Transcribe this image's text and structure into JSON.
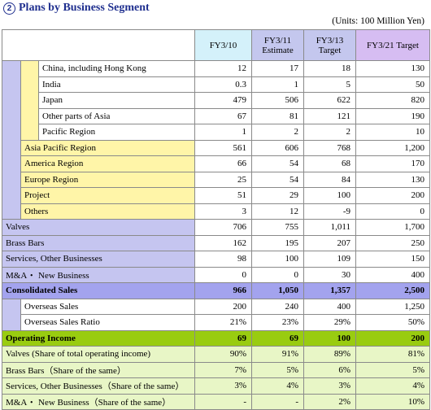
{
  "title_number": "2",
  "title": "Plans by Business Segment",
  "units": "(Units: 100 Million Yen)",
  "columns": [
    {
      "line1": "FY3/10",
      "line2": ""
    },
    {
      "line1": "FY3/11",
      "line2": "Estimate"
    },
    {
      "line1": "FY3/13",
      "line2": "Target"
    },
    {
      "line1": "FY3/21 Target",
      "line2": ""
    }
  ],
  "rows": [
    {
      "label": "China, including Hong Kong",
      "values": [
        "12",
        "17",
        "18",
        "130"
      ]
    },
    {
      "label": "India",
      "values": [
        "0.3",
        "1",
        "5",
        "50"
      ]
    },
    {
      "label": "Japan",
      "values": [
        "479",
        "506",
        "622",
        "820"
      ]
    },
    {
      "label": "Other parts of Asia",
      "values": [
        "67",
        "81",
        "121",
        "190"
      ]
    },
    {
      "label": "Pacific  Region",
      "values": [
        "1",
        "2",
        "2",
        "10"
      ]
    },
    {
      "label": "Asia Pacific  Region",
      "values": [
        "561",
        "606",
        "768",
        "1,200"
      ]
    },
    {
      "label": "America Region",
      "values": [
        "66",
        "54",
        "68",
        "170"
      ]
    },
    {
      "label": "Europe  Region",
      "values": [
        "25",
        "54",
        "84",
        "130"
      ]
    },
    {
      "label": "Project",
      "values": [
        "51",
        "29",
        "100",
        "200"
      ]
    },
    {
      "label": "Others",
      "values": [
        "3",
        "12",
        "-9",
        "0"
      ]
    },
    {
      "label": "Valves",
      "values": [
        "706",
        "755",
        "1,011",
        "1,700"
      ]
    },
    {
      "label": "Brass Bars",
      "values": [
        "162",
        "195",
        "207",
        "250"
      ]
    },
    {
      "label": "Services, Other Businesses",
      "values": [
        "98",
        "100",
        "109",
        "150"
      ]
    },
    {
      "label": "M&A・ New Business",
      "values": [
        "0",
        "0",
        "30",
        "400"
      ]
    },
    {
      "label": "Consolidated Sales",
      "values": [
        "966",
        "1,050",
        "1,357",
        "2,500"
      ]
    },
    {
      "label": "Overseas Sales",
      "values": [
        "200",
        "240",
        "400",
        "1,250"
      ]
    },
    {
      "label": "Overseas Sales Ratio",
      "values": [
        "21%",
        "23%",
        "29%",
        "50%"
      ]
    },
    {
      "label": "Operating Income",
      "values": [
        "69",
        "69",
        "100",
        "200"
      ]
    },
    {
      "label": "Valves (Share of total operating income)",
      "values": [
        "90%",
        "91%",
        "89%",
        "81%"
      ]
    },
    {
      "label": "Brass Bars（Share of the same）",
      "values": [
        "7%",
        "5%",
        "6%",
        "5%"
      ]
    },
    {
      "label": "Services, Other Businesses（Share of the same）",
      "values": [
        "3%",
        "4%",
        "3%",
        "4%"
      ]
    },
    {
      "label": "M&A・ New Business（Share of the same）",
      "values": [
        "-",
        "-",
        "2%",
        "10%"
      ]
    }
  ]
}
